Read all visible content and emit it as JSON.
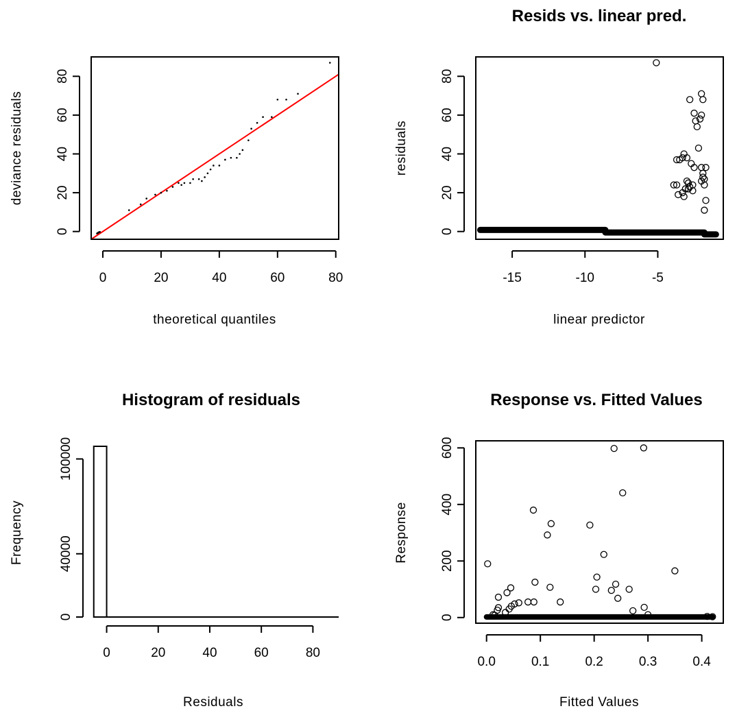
{
  "chart_data": [
    {
      "type": "scatter",
      "title": "",
      "xlabel": "theoretical quantiles",
      "ylabel": "deviance residuals",
      "xlim": [
        -4,
        81
      ],
      "ylim": [
        -4,
        90
      ],
      "xticks": [
        0,
        20,
        40,
        60,
        80
      ],
      "yticks": [
        0,
        20,
        40,
        60,
        80
      ],
      "grid": false,
      "reference_line": {
        "color": "#ff0000",
        "from": [
          -4,
          -4
        ],
        "to": [
          81,
          81
        ]
      },
      "point_color": "#000000",
      "points": [
        [
          -2,
          -1
        ],
        [
          -1.8,
          -0.8
        ],
        [
          -1.6,
          -0.6
        ],
        [
          -1.4,
          -0.4
        ],
        [
          -1.2,
          -0.3
        ],
        [
          -1,
          -0.2
        ],
        [
          9,
          11
        ],
        [
          13,
          14
        ],
        [
          15,
          17
        ],
        [
          18,
          19
        ],
        [
          20,
          20
        ],
        [
          22,
          21
        ],
        [
          24,
          23
        ],
        [
          26,
          25
        ],
        [
          27,
          24
        ],
        [
          28,
          25
        ],
        [
          30,
          25
        ],
        [
          31,
          27
        ],
        [
          33,
          27
        ],
        [
          34,
          26
        ],
        [
          35,
          28
        ],
        [
          36,
          30
        ],
        [
          37,
          32
        ],
        [
          38,
          34
        ],
        [
          40,
          34
        ],
        [
          42,
          37
        ],
        [
          44,
          38
        ],
        [
          46,
          38
        ],
        [
          47,
          40
        ],
        [
          48,
          42
        ],
        [
          50,
          47
        ],
        [
          51,
          53
        ],
        [
          53,
          56
        ],
        [
          55,
          59
        ],
        [
          58,
          59
        ],
        [
          60,
          68
        ],
        [
          63,
          68
        ],
        [
          67,
          71
        ],
        [
          78,
          87
        ]
      ]
    },
    {
      "type": "scatter",
      "title": "Resids vs. linear pred.",
      "xlabel": "linear predictor",
      "ylabel": "residuals",
      "xlim": [
        -17.5,
        -0.5
      ],
      "ylim": [
        -4,
        90
      ],
      "xticks": [
        -15,
        -10,
        -5
      ],
      "yticks": [
        0,
        20,
        40,
        60,
        80
      ],
      "grid": false,
      "band_segments": [
        {
          "x_from": -17.2,
          "x_to": -8.6,
          "y": 0.8
        },
        {
          "x_from": -8.6,
          "x_to": -1.8,
          "y": -0.5
        },
        {
          "x_from": -1.8,
          "x_to": -1.0,
          "y": -1.5
        }
      ],
      "points": [
        [
          -5.1,
          87
        ],
        [
          -3.7,
          37
        ],
        [
          -3.5,
          37
        ],
        [
          -3.3,
          38
        ],
        [
          -3.2,
          40
        ],
        [
          -3.0,
          38
        ],
        [
          -3.7,
          24
        ],
        [
          -3.6,
          19
        ],
        [
          -3.3,
          20
        ],
        [
          -3.2,
          18
        ],
        [
          -3.1,
          22
        ],
        [
          -2.9,
          25
        ],
        [
          -2.8,
          23
        ],
        [
          -2.7,
          35
        ],
        [
          -2.6,
          21
        ],
        [
          -2.5,
          33
        ],
        [
          -3.0,
          26
        ],
        [
          -2.9,
          22
        ],
        [
          -2.6,
          24
        ],
        [
          -2.8,
          68
        ],
        [
          -2.5,
          61
        ],
        [
          -2.4,
          57
        ],
        [
          -2.3,
          54
        ],
        [
          -2.1,
          58
        ],
        [
          -2.0,
          60
        ],
        [
          -2.0,
          71
        ],
        [
          -1.9,
          68
        ],
        [
          -2.2,
          43
        ],
        [
          -2.0,
          33
        ],
        [
          -1.9,
          30
        ],
        [
          -1.8,
          27
        ],
        [
          -1.7,
          33
        ],
        [
          -2.0,
          26
        ],
        [
          -1.8,
          24
        ],
        [
          -1.7,
          16
        ],
        [
          -1.8,
          11
        ],
        [
          -1.9,
          28
        ],
        [
          -3.9,
          24
        ]
      ]
    },
    {
      "type": "bar",
      "title": "Histogram of residuals",
      "xlabel": "Residuals",
      "ylabel": "Frequency",
      "bins": [
        {
          "from": -5,
          "to": 0,
          "count": 108000
        }
      ],
      "xlim": [
        -6,
        90
      ],
      "ylim": [
        0,
        108000
      ],
      "xticks": [
        0,
        20,
        40,
        60,
        80
      ],
      "yticks": [
        0,
        40000,
        100000
      ],
      "ytick_labels": [
        "0",
        "40000",
        "100000"
      ],
      "grid": false
    },
    {
      "type": "scatter",
      "title": "Response vs. Fitted Values",
      "xlabel": "Fitted Values",
      "ylabel": "Response",
      "xlim": [
        -0.02,
        0.44
      ],
      "ylim": [
        -20,
        625
      ],
      "xticks": [
        0.0,
        0.1,
        0.2,
        0.3,
        0.4
      ],
      "xtick_labels": [
        "0.0",
        "0.1",
        "0.2",
        "0.3",
        "0.4"
      ],
      "yticks": [
        0,
        200,
        400,
        600
      ],
      "grid": false,
      "band_segments": [
        {
          "x_from": 0.0,
          "x_to": 0.42,
          "y": 2
        }
      ],
      "points": [
        [
          0.237,
          598
        ],
        [
          0.292,
          600
        ],
        [
          0.253,
          441
        ],
        [
          0.087,
          380
        ],
        [
          0.12,
          332
        ],
        [
          0.113,
          292
        ],
        [
          0.192,
          327
        ],
        [
          0.002,
          190
        ],
        [
          0.218,
          223
        ],
        [
          0.35,
          165
        ],
        [
          0.205,
          143
        ],
        [
          0.09,
          125
        ],
        [
          0.24,
          118
        ],
        [
          0.118,
          107
        ],
        [
          0.203,
          100
        ],
        [
          0.232,
          96
        ],
        [
          0.265,
          100
        ],
        [
          0.045,
          105
        ],
        [
          0.022,
          72
        ],
        [
          0.038,
          88
        ],
        [
          0.244,
          68
        ],
        [
          0.137,
          55
        ],
        [
          0.077,
          55
        ],
        [
          0.088,
          55
        ],
        [
          0.052,
          48
        ],
        [
          0.046,
          40
        ],
        [
          0.022,
          35
        ],
        [
          0.02,
          26
        ],
        [
          0.042,
          30
        ],
        [
          0.272,
          24
        ],
        [
          0.293,
          36
        ],
        [
          0.06,
          52
        ],
        [
          0.035,
          18
        ],
        [
          0.3,
          10
        ],
        [
          0.012,
          10
        ],
        [
          0.015,
          8
        ],
        [
          0.41,
          4
        ],
        [
          0.42,
          3
        ]
      ]
    }
  ]
}
